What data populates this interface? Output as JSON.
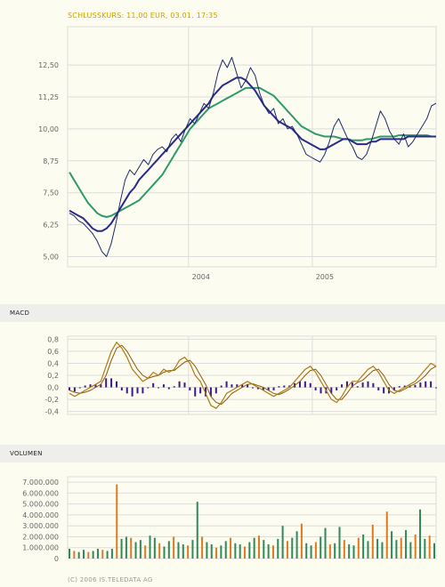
{
  "header": {
    "quote": "SCHLUSSKURS: 11,00 EUR, 03.01. 17:35"
  },
  "sections": {
    "macd_label": "MACD",
    "volume_label": "VOLUMEN"
  },
  "footer": {
    "copyright": "(C) 2006 IS.TELEDATA AG"
  },
  "colors": {
    "price": "#1a2a66",
    "ma_short": "#2a2a8a",
    "ma_long": "#2e9a6a",
    "macd": "#b07a14",
    "signal": "#8a5a10",
    "hist": "#3a1a8a",
    "vol_up": "#2e8a5a",
    "vol_down": "#e07a1e",
    "grid": "#dddddd",
    "header": "#c8a000"
  },
  "chart_data": [
    {
      "type": "line",
      "name": "price",
      "ylim": [
        4.6,
        14.0
      ],
      "y_ticks": [
        "12,50",
        "11,25",
        "10,00",
        "8,75",
        "7,50",
        "6,25",
        "5,00"
      ],
      "y_tick_values": [
        12.5,
        11.25,
        10.0,
        8.75,
        7.5,
        6.25,
        5.0
      ],
      "x_ticks": [
        "2004",
        "2005"
      ],
      "x_tick_positions": [
        0.328,
        0.664
      ],
      "series": [
        {
          "values": [
            6.7,
            6.6,
            6.4,
            6.3,
            6.1,
            5.9,
            5.6,
            5.2,
            5.0,
            5.5,
            6.3,
            7.2,
            8.0,
            8.4,
            8.2,
            8.5,
            8.8,
            8.6,
            9.0,
            9.2,
            9.3,
            9.1,
            9.6,
            9.8,
            9.5,
            10.0,
            10.4,
            10.2,
            10.6,
            11.0,
            10.8,
            11.4,
            12.2,
            12.7,
            12.4,
            12.8,
            12.2,
            11.6,
            11.9,
            12.4,
            12.1,
            11.4,
            10.9,
            10.6,
            10.8,
            10.2,
            10.4,
            10.0,
            10.1,
            9.8,
            9.4,
            9.0,
            8.9,
            8.8,
            8.7,
            9.0,
            9.5,
            10.1,
            10.4,
            10.0,
            9.6,
            9.3,
            8.9,
            8.8,
            9.0,
            9.5,
            10.1,
            10.7,
            10.4,
            9.9,
            9.6,
            9.4,
            9.8,
            9.3,
            9.5,
            9.8,
            10.1,
            10.4,
            10.9,
            11.0
          ]
        },
        {
          "values": [
            6.8,
            6.7,
            6.6,
            6.5,
            6.3,
            6.1,
            6.0,
            6.0,
            6.1,
            6.3,
            6.6,
            6.9,
            7.2,
            7.5,
            7.7,
            8.0,
            8.2,
            8.4,
            8.6,
            8.8,
            9.0,
            9.2,
            9.4,
            9.6,
            9.8,
            10.0,
            10.2,
            10.4,
            10.6,
            10.8,
            11.0,
            11.3,
            11.5,
            11.7,
            11.8,
            11.9,
            12.0,
            12.0,
            11.9,
            11.7,
            11.5,
            11.2,
            10.9,
            10.7,
            10.5,
            10.3,
            10.2,
            10.1,
            10.0,
            9.8,
            9.6,
            9.5,
            9.4,
            9.3,
            9.2,
            9.2,
            9.3,
            9.4,
            9.5,
            9.6,
            9.6,
            9.5,
            9.4,
            9.4,
            9.4,
            9.5,
            9.5,
            9.6,
            9.6,
            9.6,
            9.6,
            9.6,
            9.6,
            9.7,
            9.7,
            9.7,
            9.7,
            9.7,
            9.7,
            9.7
          ]
        },
        {
          "values": [
            8.3,
            8.0,
            7.7,
            7.4,
            7.1,
            6.9,
            6.7,
            6.6,
            6.55,
            6.6,
            6.7,
            6.8,
            6.9,
            7.0,
            7.1,
            7.2,
            7.4,
            7.6,
            7.8,
            8.0,
            8.2,
            8.5,
            8.8,
            9.1,
            9.4,
            9.7,
            10.0,
            10.2,
            10.4,
            10.6,
            10.8,
            10.9,
            11.0,
            11.1,
            11.2,
            11.3,
            11.4,
            11.5,
            11.6,
            11.6,
            11.6,
            11.6,
            11.5,
            11.4,
            11.3,
            11.1,
            10.9,
            10.7,
            10.5,
            10.3,
            10.1,
            10.0,
            9.9,
            9.8,
            9.75,
            9.7,
            9.7,
            9.7,
            9.65,
            9.6,
            9.6,
            9.55,
            9.55,
            9.55,
            9.6,
            9.6,
            9.65,
            9.7,
            9.7,
            9.7,
            9.7,
            9.75,
            9.75,
            9.75,
            9.75,
            9.75,
            9.75,
            9.75,
            9.7,
            9.7
          ]
        }
      ]
    },
    {
      "type": "line",
      "name": "macd",
      "ylim": [
        -0.45,
        0.85
      ],
      "y_ticks": [
        "0,8",
        "0,6",
        "0,4",
        "0,2",
        "0,0",
        "-0,2",
        "-0,4"
      ],
      "y_tick_values": [
        0.8,
        0.6,
        0.4,
        0.2,
        0.0,
        -0.2,
        -0.4
      ],
      "series": [
        {
          "values": [
            -0.1,
            -0.15,
            -0.1,
            -0.05,
            0.0,
            0.05,
            0.1,
            0.35,
            0.6,
            0.75,
            0.65,
            0.5,
            0.3,
            0.2,
            0.1,
            0.15,
            0.25,
            0.2,
            0.3,
            0.25,
            0.3,
            0.45,
            0.5,
            0.4,
            0.2,
            0.1,
            -0.1,
            -0.3,
            -0.35,
            -0.25,
            -0.1,
            -0.05,
            0.0,
            0.05,
            0.1,
            0.05,
            0.0,
            -0.05,
            -0.1,
            -0.15,
            -0.1,
            -0.05,
            0.0,
            0.1,
            0.2,
            0.3,
            0.35,
            0.25,
            0.1,
            -0.05,
            -0.2,
            -0.25,
            -0.15,
            0.0,
            0.1,
            0.1,
            0.2,
            0.3,
            0.35,
            0.25,
            0.1,
            -0.05,
            -0.1,
            -0.05,
            0.0,
            0.05,
            0.1,
            0.2,
            0.3,
            0.4,
            0.35
          ]
        },
        {
          "values": [
            -0.05,
            -0.08,
            -0.1,
            -0.08,
            -0.05,
            0.0,
            0.05,
            0.2,
            0.45,
            0.65,
            0.7,
            0.6,
            0.45,
            0.3,
            0.2,
            0.15,
            0.18,
            0.2,
            0.25,
            0.28,
            0.28,
            0.35,
            0.42,
            0.45,
            0.35,
            0.2,
            0.05,
            -0.15,
            -0.25,
            -0.28,
            -0.2,
            -0.1,
            -0.05,
            0.0,
            0.05,
            0.06,
            0.03,
            0.0,
            -0.05,
            -0.1,
            -0.12,
            -0.08,
            -0.03,
            0.03,
            0.1,
            0.2,
            0.28,
            0.3,
            0.2,
            0.05,
            -0.1,
            -0.2,
            -0.2,
            -0.1,
            0.02,
            0.08,
            0.12,
            0.2,
            0.28,
            0.3,
            0.2,
            0.05,
            -0.05,
            -0.07,
            -0.03,
            0.02,
            0.06,
            0.12,
            0.2,
            0.3,
            0.35
          ]
        }
      ]
    },
    {
      "type": "bar",
      "name": "volume",
      "ylim": [
        0,
        7500000
      ],
      "y_ticks": [
        "7.000.000",
        "6.000.000",
        "5.000.000",
        "4.000.000",
        "3.000.000",
        "2.000.000",
        "1.000.000",
        "0"
      ],
      "y_tick_values": [
        7000000,
        6000000,
        5000000,
        4000000,
        3000000,
        2000000,
        1000000,
        0
      ],
      "values": [
        900000,
        700000,
        600000,
        800000,
        600000,
        700000,
        900000,
        800000,
        700000,
        900000,
        6800000,
        1800000,
        2000000,
        1900000,
        1500000,
        1700000,
        1200000,
        2100000,
        1900000,
        1400000,
        1100000,
        1600000,
        2000000,
        1500000,
        1300000,
        1200000,
        1700000,
        5200000,
        2000000,
        1500000,
        1300000,
        1000000,
        1200000,
        1600000,
        1900000,
        1400000,
        1300000,
        1100000,
        1500000,
        1900000,
        2100000,
        1700000,
        1300000,
        1200000,
        1800000,
        3000000,
        1600000,
        1900000,
        2500000,
        3200000,
        1400000,
        1200000,
        1500000,
        2000000,
        2800000,
        1300000,
        1400000,
        2900000,
        1700000,
        1300000,
        1200000,
        1900000,
        2200000,
        1600000,
        3100000,
        1800000,
        1500000,
        4300000,
        2500000,
        1700000,
        1900000,
        2600000,
        1500000,
        2200000,
        4500000,
        1800000,
        2100000,
        1400000
      ]
    }
  ]
}
